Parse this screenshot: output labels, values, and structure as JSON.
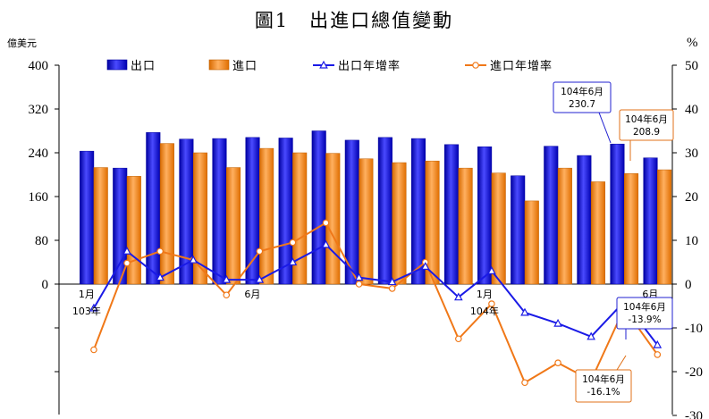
{
  "chart_data": {
    "type": "bar",
    "title": "圖1　出進口總值變動",
    "left_unit": "億美元",
    "right_unit": "%",
    "left_axis": {
      "min": 0,
      "max": 400,
      "ticks": [
        "400",
        "320",
        "240",
        "160",
        "80",
        "0"
      ]
    },
    "right_axis": {
      "min": -30,
      "max": 50,
      "ticks": [
        "50",
        "40",
        "30",
        "20",
        "10",
        "0",
        "-10",
        "-20",
        "-30"
      ]
    },
    "legend": [
      "出口",
      "進口",
      "出口年增率",
      "進口年增率"
    ],
    "x_labels": [
      {
        "index": 0,
        "month": "1月",
        "year": "103年"
      },
      {
        "index": 5,
        "month": "6月",
        "year": ""
      },
      {
        "index": 12,
        "month": "1月",
        "year": "104年"
      },
      {
        "index": 17,
        "month": "6月",
        "year": ""
      }
    ],
    "series": [
      {
        "name": "出口",
        "axis": "left",
        "kind": "bar",
        "color": "#1a1aff",
        "values": [
          243,
          212,
          277,
          265,
          266,
          268,
          267,
          280,
          263,
          268,
          266,
          255,
          251,
          198,
          252,
          235,
          256,
          230.7
        ]
      },
      {
        "name": "進口",
        "axis": "left",
        "kind": "bar",
        "color": "#ff8c1a",
        "values": [
          213,
          197,
          257,
          240,
          213,
          248,
          240,
          239,
          229,
          222,
          225,
          212,
          203,
          152,
          212,
          187,
          202,
          208.9
        ]
      },
      {
        "name": "出口年增率",
        "axis": "right",
        "kind": "line",
        "color": "#1a1ae6",
        "values": [
          -5.5,
          7.5,
          1.5,
          5.5,
          1.0,
          1.0,
          5.0,
          9.0,
          1.5,
          0.5,
          4.0,
          -3.0,
          3.0,
          -6.5,
          -9.0,
          -12.0,
          -4.0,
          -13.9
        ]
      },
      {
        "name": "進口年增率",
        "axis": "right",
        "kind": "line",
        "color": "#f07818",
        "values": [
          -15.0,
          4.8,
          7.5,
          5.5,
          -2.5,
          7.5,
          9.5,
          14.0,
          0.0,
          -1.0,
          5.0,
          -12.5,
          -4.5,
          -22.5,
          -18.0,
          -22.0,
          -5.5,
          -16.1
        ]
      }
    ],
    "callouts": [
      {
        "series": 0,
        "index": 17,
        "line1": "104年6月",
        "line2": "230.7"
      },
      {
        "series": 1,
        "index": 17,
        "line1": "104年6月",
        "line2": "208.9"
      },
      {
        "series": 2,
        "index": 17,
        "line1": "104年6月",
        "line2": "-13.9%"
      },
      {
        "series": 3,
        "index": 17,
        "line1": "104年6月",
        "line2": "-16.1%"
      }
    ]
  }
}
